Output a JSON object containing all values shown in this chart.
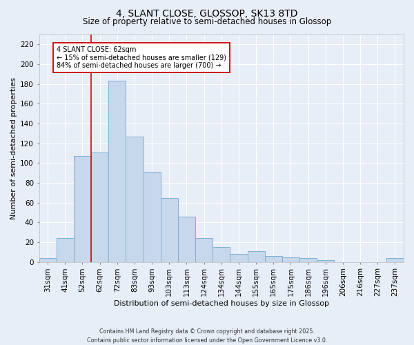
{
  "title": "4, SLANT CLOSE, GLOSSOP, SK13 8TD",
  "subtitle": "Size of property relative to semi-detached houses in Glossop",
  "xlabel": "Distribution of semi-detached houses by size in Glossop",
  "ylabel": "Number of semi-detached properties",
  "categories": [
    "31sqm",
    "41sqm",
    "52sqm",
    "62sqm",
    "72sqm",
    "83sqm",
    "93sqm",
    "103sqm",
    "113sqm",
    "124sqm",
    "134sqm",
    "144sqm",
    "155sqm",
    "165sqm",
    "175sqm",
    "186sqm",
    "196sqm",
    "206sqm",
    "216sqm",
    "227sqm",
    "237sqm"
  ],
  "values": [
    4,
    24,
    107,
    111,
    183,
    127,
    91,
    65,
    46,
    24,
    15,
    8,
    11,
    6,
    5,
    4,
    2,
    0,
    0,
    0,
    4
  ],
  "bar_color": "#c8d8ec",
  "bar_edge_color": "#7bafd4",
  "vline_x_index": 3,
  "vline_color": "#dd0000",
  "annotation_text": "4 SLANT CLOSE: 62sqm\n← 15% of semi-detached houses are smaller (129)\n84% of semi-detached houses are larger (700) →",
  "annotation_box_color": "#ffffff",
  "annotation_box_edge": "#cc0000",
  "ylim": [
    0,
    230
  ],
  "yticks": [
    0,
    20,
    40,
    60,
    80,
    100,
    120,
    140,
    160,
    180,
    200,
    220
  ],
  "background_color": "#e8eef8",
  "grid_color": "#ffffff",
  "footer_line1": "Contains HM Land Registry data © Crown copyright and database right 2025.",
  "footer_line2": "Contains public sector information licensed under the Open Government Licence v3.0.",
  "title_fontsize": 10,
  "xlabel_fontsize": 8,
  "ylabel_fontsize": 8,
  "tick_fontsize": 7.5
}
